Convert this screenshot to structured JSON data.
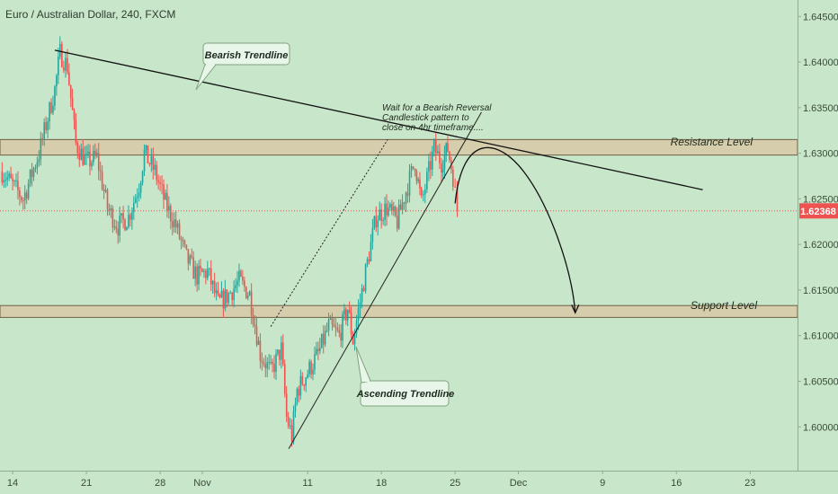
{
  "chart_data": {
    "type": "candlestick",
    "title": "Euro / Australian Dollar, 240, FXCM",
    "x_tick_labels": [
      {
        "label": "14",
        "day_index": 0
      },
      {
        "label": "21",
        "day_index": 7
      },
      {
        "label": "28",
        "day_index": 14
      },
      {
        "label": "Nov",
        "day_index": 18
      },
      {
        "label": "11",
        "day_index": 28
      },
      {
        "label": "18",
        "day_index": 35
      },
      {
        "label": "25",
        "day_index": 42
      },
      {
        "label": "Dec",
        "day_index": 48
      },
      {
        "label": "9",
        "day_index": 56
      },
      {
        "label": "16",
        "day_index": 63
      },
      {
        "label": "23",
        "day_index": 70
      }
    ],
    "y_ticks": [
      "1.64500",
      "1.64000",
      "1.63500",
      "1.63000",
      "1.62500",
      "1.62000",
      "1.61500",
      "1.61000",
      "1.60500",
      "1.60000"
    ],
    "ylim": [
      1.5952,
      1.6468
    ],
    "xlim_days": [
      -1.2,
      74.5
    ],
    "current_price": "1.62368",
    "colors": {
      "up": "#26a69a",
      "down": "#ef5350",
      "background": "#c8e6c9",
      "zone": "#d7c8a6",
      "price_line": "#ef5350",
      "price_label_bg": "#ef5350"
    },
    "key_points": [
      {
        "day": -1.0,
        "price": 1.628
      },
      {
        "day": 1.0,
        "price": 1.625
      },
      {
        "day": 2.5,
        "price": 1.63
      },
      {
        "day": 4.0,
        "price": 1.637
      },
      {
        "day": 4.5,
        "price": 1.641
      },
      {
        "day": 5.2,
        "price": 1.6395
      },
      {
        "day": 6.0,
        "price": 1.631
      },
      {
        "day": 7.0,
        "price": 1.629
      },
      {
        "day": 8.0,
        "price": 1.6295
      },
      {
        "day": 9.0,
        "price": 1.624
      },
      {
        "day": 10.0,
        "price": 1.622
      },
      {
        "day": 11.0,
        "price": 1.623
      },
      {
        "day": 12.0,
        "price": 1.6265
      },
      {
        "day": 12.5,
        "price": 1.63
      },
      {
        "day": 13.5,
        "price": 1.628
      },
      {
        "day": 14.5,
        "price": 1.6245
      },
      {
        "day": 15.5,
        "price": 1.622
      },
      {
        "day": 16.5,
        "price": 1.6185
      },
      {
        "day": 17.5,
        "price": 1.6165
      },
      {
        "day": 18.5,
        "price": 1.617
      },
      {
        "day": 19.5,
        "price": 1.6135
      },
      {
        "day": 20.5,
        "price": 1.6145
      },
      {
        "day": 21.5,
        "price": 1.616
      },
      {
        "day": 22.5,
        "price": 1.6145
      },
      {
        "day": 23.5,
        "price": 1.608
      },
      {
        "day": 24.5,
        "price": 1.606
      },
      {
        "day": 25.5,
        "price": 1.6085
      },
      {
        "day": 26.0,
        "price": 1.601
      },
      {
        "day": 26.5,
        "price": 1.599
      },
      {
        "day": 27.0,
        "price": 1.604
      },
      {
        "day": 28.0,
        "price": 1.606
      },
      {
        "day": 29.0,
        "price": 1.608
      },
      {
        "day": 30.0,
        "price": 1.611
      },
      {
        "day": 31.0,
        "price": 1.61
      },
      {
        "day": 31.8,
        "price": 1.613
      },
      {
        "day": 32.3,
        "price": 1.6095
      },
      {
        "day": 33.5,
        "price": 1.617
      },
      {
        "day": 34.5,
        "price": 1.623
      },
      {
        "day": 35.5,
        "price": 1.624
      },
      {
        "day": 36.5,
        "price": 1.6225
      },
      {
        "day": 37.5,
        "price": 1.6265
      },
      {
        "day": 38.2,
        "price": 1.629
      },
      {
        "day": 38.8,
        "price": 1.6245
      },
      {
        "day": 39.5,
        "price": 1.628
      },
      {
        "day": 40.0,
        "price": 1.6305
      },
      {
        "day": 40.7,
        "price": 1.629
      },
      {
        "day": 41.3,
        "price": 1.6305
      },
      {
        "day": 41.8,
        "price": 1.6275
      },
      {
        "day": 42.2,
        "price": 1.6237
      }
    ],
    "resistance_zone": [
      1.6298,
      1.6315
    ],
    "support_zone": [
      1.612,
      1.6133
    ],
    "bearish_trendline": [
      {
        "day": 4.0,
        "price": 1.6413
      },
      {
        "day": 65.5,
        "price": 1.626
      }
    ],
    "ascending_trendline": [
      {
        "day": 26.2,
        "price": 1.5976
      },
      {
        "day": 44.5,
        "price": 1.6345
      }
    ],
    "channel_line": [
      {
        "day": 24.5,
        "price": 1.611
      },
      {
        "day": 35.6,
        "price": 1.6315
      }
    ],
    "projection_path": [
      {
        "day": 42.0,
        "price": 1.6245
      },
      {
        "day": 45.2,
        "price": 1.6305
      },
      {
        "day": 48.5,
        "price": 1.628
      },
      {
        "day": 53.4,
        "price": 1.6125
      }
    ],
    "annotations": {
      "bearish_trendline": "Bearish Trendline",
      "ascending_trendline": "Ascending Trendline",
      "resistance": "Resistance Level",
      "support": "Support Level",
      "note_line1": "Wait for a Bearish Reversal",
      "note_line2": "Candlestick pattern to",
      "note_line3": "close on 4hr timeframe...."
    }
  }
}
